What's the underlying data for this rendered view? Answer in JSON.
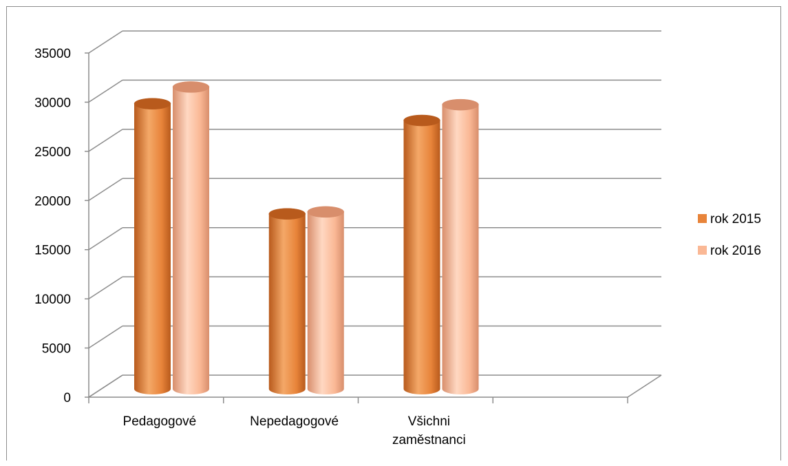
{
  "chart_data": {
    "type": "bar",
    "title": "",
    "xlabel": "",
    "ylabel": "",
    "categories": [
      [
        "Pedagogové"
      ],
      [
        "Nepedagogové"
      ],
      [
        "Všichni",
        "zaměstnanci"
      ],
      [
        ""
      ]
    ],
    "series": [
      {
        "name": "rok 2015",
        "values": [
          29000,
          17800,
          27300,
          null
        ],
        "color": "#E8843A",
        "color_dark": "#B85A1C",
        "color_light": "#F4A868"
      },
      {
        "name": "rok 2016",
        "values": [
          30700,
          18000,
          28900,
          null
        ],
        "color": "#FAB895",
        "color_dark": "#D88E6C",
        "color_light": "#FFD8C2"
      }
    ],
    "ylim": [
      0,
      35000
    ],
    "yticks": [
      0,
      5000,
      10000,
      15000,
      20000,
      25000,
      30000,
      35000
    ],
    "grid": true,
    "legend_position": "right",
    "style": "3d-cylinder"
  }
}
